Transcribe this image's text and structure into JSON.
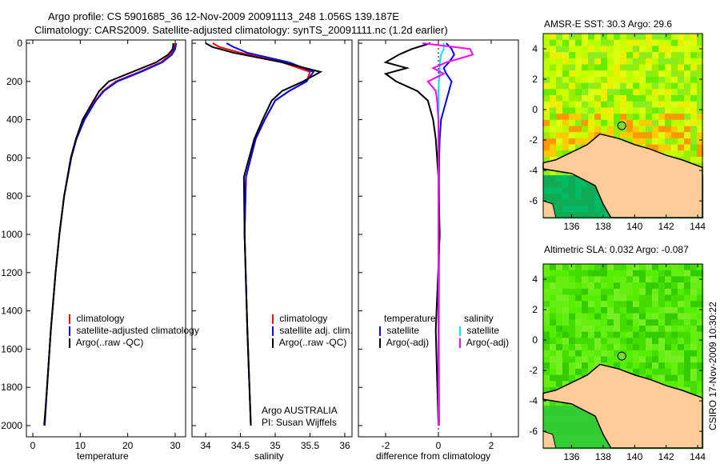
{
  "title": {
    "line1": "Argo profile: CS 5901685_36 12-Nov-2009 20091113_248 1.056S 139.187E",
    "line2": "Climatology: CARS2009. Satellite-adjusted climatology: synTS_20091111.nc (1.2d earlier)"
  },
  "footer": {
    "credit": "CSIRO 17-Nov-2009 10:30:22",
    "argo_label": "Argo AUSTRALIA",
    "pi_label": "PI: Susan Wijffels"
  },
  "colors": {
    "climatology": "#ff0000",
    "satellite": "#0000ff",
    "argo": "#000000",
    "sal_satellite": "#00e5ff",
    "sal_argo": "#ff00ff",
    "land": "#ffcc99"
  },
  "chart_data": [
    {
      "type": "line",
      "xlabel": "temperature",
      "ylabel": "",
      "xlim": [
        -2,
        32
      ],
      "ylim": [
        2050,
        0
      ],
      "xticks": [
        0,
        10,
        20,
        30
      ],
      "yticks": [
        0,
        200,
        400,
        600,
        800,
        1000,
        1200,
        1400,
        1600,
        1800,
        2000
      ],
      "legend": [
        "climatology",
        "satellite-adjusted climatology",
        "Argo(..raw -QC)"
      ],
      "legend_placement": "center-right",
      "depth": [
        0,
        30,
        60,
        100,
        150,
        200,
        250,
        300,
        400,
        500,
        600,
        800,
        1000,
        1200,
        1500,
        1800,
        2000
      ],
      "series": [
        {
          "name": "climatology",
          "color": "#ff0000",
          "values": [
            29.9,
            29.7,
            29.0,
            27.0,
            22.5,
            17.5,
            14.8,
            13.2,
            10.8,
            9.2,
            8.1,
            6.6,
            5.6,
            4.8,
            3.8,
            3.0,
            2.5
          ]
        },
        {
          "name": "satellite-adjusted climatology",
          "color": "#0000ff",
          "values": [
            30.2,
            30.0,
            29.3,
            27.3,
            22.8,
            17.8,
            15.0,
            13.3,
            10.9,
            9.2,
            8.1,
            6.6,
            5.6,
            4.8,
            3.8,
            3.0,
            2.5
          ]
        },
        {
          "name": "Argo(..raw -QC)",
          "color": "#000000",
          "values": [
            29.6,
            29.5,
            28.5,
            26.0,
            21.0,
            16.0,
            14.0,
            12.8,
            10.5,
            9.1,
            8.0,
            6.6,
            5.6,
            4.8,
            3.8,
            3.0,
            2.4
          ]
        }
      ]
    },
    {
      "type": "line",
      "xlabel": "salinity",
      "xlim": [
        33.8,
        36.2
      ],
      "ylim": [
        2050,
        0
      ],
      "xticks": [
        34,
        34.5,
        35,
        35.5,
        36
      ],
      "legend": [
        "climatology",
        "satellite adj. clim.",
        "Argo(..raw -QC)"
      ],
      "legend_placement": "center-right",
      "depth": [
        0,
        20,
        50,
        100,
        150,
        200,
        250,
        300,
        400,
        500,
        700,
        1000,
        1500,
        2000
      ],
      "series": [
        {
          "name": "climatology",
          "color": "#ff0000",
          "values": [
            34.1,
            34.2,
            34.5,
            35.1,
            35.5,
            35.45,
            35.2,
            35.0,
            34.85,
            34.72,
            34.58,
            34.56,
            34.6,
            34.65
          ]
        },
        {
          "name": "satellite adj. clim.",
          "color": "#0000ff",
          "values": [
            34.3,
            34.4,
            34.6,
            35.2,
            35.55,
            35.45,
            35.2,
            35.0,
            34.85,
            34.72,
            34.58,
            34.56,
            34.6,
            34.65
          ]
        },
        {
          "name": "Argo(..raw -QC)",
          "color": "#000000",
          "values": [
            34.0,
            34.1,
            34.4,
            35.1,
            35.65,
            35.4,
            35.1,
            34.95,
            34.82,
            34.7,
            34.55,
            34.56,
            34.6,
            34.65
          ]
        }
      ]
    },
    {
      "type": "line",
      "xlabel": "difference from climatology",
      "xlim": [
        -3,
        3
      ],
      "ylim": [
        2050,
        0
      ],
      "xticks": [
        -2,
        0,
        2
      ],
      "legend": {
        "temperature_header": "temperature",
        "salinity_header": "salinity",
        "entries": [
          "satellite",
          "Argo(-adj)",
          "satellite",
          "Argo(-adj)"
        ]
      },
      "legend_placement": "center",
      "depth": [
        0,
        30,
        60,
        100,
        130,
        160,
        200,
        250,
        300,
        400,
        500,
        600,
        700,
        1000,
        1500,
        2000
      ],
      "series": [
        {
          "name": "temperature satellite",
          "color": "#0000ff",
          "values": [
            0.3,
            0.5,
            0.6,
            0.4,
            0.2,
            0.3,
            0.5,
            0.4,
            0.3,
            0.1,
            0.05,
            0.03,
            0.02,
            0.02,
            0.01,
            0.02
          ]
        },
        {
          "name": "temperature Argo(-adj)",
          "color": "#000000",
          "values": [
            -0.3,
            -1.0,
            -1.5,
            -2.0,
            -1.2,
            -2.0,
            -1.6,
            -0.8,
            -0.4,
            -0.2,
            -0.1,
            -0.05,
            0,
            0.05,
            -0.1,
            0
          ]
        },
        {
          "name": "salinity satellite",
          "color": "#00e5ff",
          "values": [
            0.2,
            0.2,
            0.1,
            0.05,
            0.05,
            0.05,
            0.02,
            0,
            0,
            0,
            0,
            0,
            0,
            0,
            0,
            0
          ]
        },
        {
          "name": "salinity Argo(-adj)",
          "color": "#ff00ff",
          "values": [
            -0.6,
            1.2,
            1.3,
            0.3,
            -0.2,
            0.2,
            -0.4,
            -0.1,
            -0.05,
            0,
            0,
            0,
            0,
            0,
            0,
            0
          ]
        }
      ]
    },
    {
      "type": "heatmap",
      "title": "AMSR-E SST: 30.3 Argo: 29.6",
      "xlim": [
        134.2,
        144.3
      ],
      "ylim": [
        -7.1,
        5
      ],
      "xticks": [
        136,
        138,
        140,
        142,
        144
      ],
      "yticks": [
        -6,
        -4,
        -2,
        0,
        2,
        4
      ],
      "float_position": [
        139.187,
        -1.056
      ]
    },
    {
      "type": "heatmap",
      "title": "Altimetric SLA: 0.032 Argo: -0.087",
      "xlim": [
        134.2,
        144.3
      ],
      "ylim": [
        -7.1,
        5
      ],
      "xticks": [
        136,
        138,
        140,
        142,
        144
      ],
      "yticks": [
        -6,
        -4,
        -2,
        0,
        2,
        4
      ],
      "float_position": [
        139.187,
        -1.056
      ]
    }
  ]
}
